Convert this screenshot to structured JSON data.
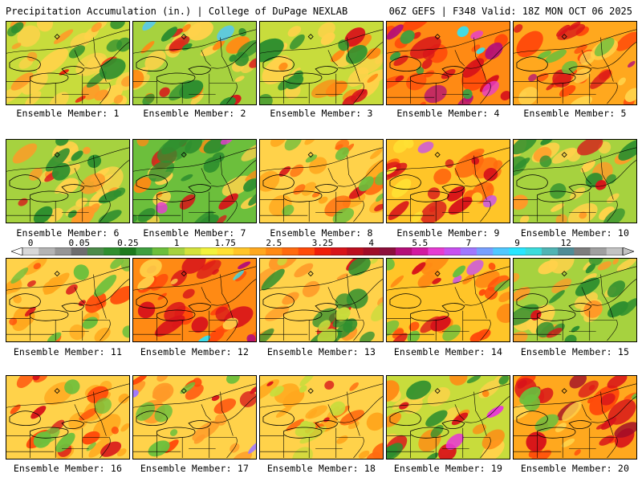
{
  "header": {
    "title_left": "Precipitation Accumulation (in.) | College of DuPage NEXLAB",
    "title_right": "06Z GEFS | F348 Valid: 18Z MON OCT 06 2025"
  },
  "colorbar": {
    "labels": [
      "0",
      "0.05",
      "0.25",
      "1",
      "1.75",
      "2.5",
      "3.25",
      "4",
      "5.5",
      "7",
      "9",
      "12"
    ],
    "label_segments": [
      0,
      3,
      6,
      9,
      12,
      15,
      18,
      21,
      24,
      27,
      30,
      33
    ],
    "colors": [
      "#d8d8d8",
      "#b4b4b4",
      "#969696",
      "#6e6e6e",
      "#4d8b4a",
      "#2f8f2f",
      "#1d7a1d",
      "#3f9f3f",
      "#6cbf3c",
      "#a6d23f",
      "#d4e23c",
      "#f2f23c",
      "#ffe033",
      "#ffc528",
      "#ffa81e",
      "#ff8a14",
      "#ff6a0f",
      "#ff4a0a",
      "#f01e0a",
      "#d8141a",
      "#bc0f1f",
      "#a00c28",
      "#8c0f3c",
      "#b40f78",
      "#d21aa0",
      "#e63cd2",
      "#c850f0",
      "#a078ff",
      "#78a0ff",
      "#50c8ff",
      "#28e6ff",
      "#3cdcdc",
      "#50b4b4",
      "#508c96",
      "#7d7d7d",
      "#a0a0a0",
      "#c3c3c3"
    ]
  },
  "members": [
    {
      "caption": "Ensemble Member: 1",
      "base": "#c8dc3c",
      "blobs": [
        [
          "#ffd24a",
          0.45
        ],
        [
          "#ff9a28",
          0.25
        ],
        [
          "#f01e0a",
          0.08
        ],
        [
          "#2f8f2f",
          0.2
        ]
      ]
    },
    {
      "caption": "Ensemble Member: 2",
      "base": "#a6d23f",
      "blobs": [
        [
          "#ffd24a",
          0.3
        ],
        [
          "#ff8a14",
          0.2
        ],
        [
          "#d8141a",
          0.15
        ],
        [
          "#2f8f2f",
          0.25
        ],
        [
          "#50c8ff",
          0.02
        ]
      ]
    },
    {
      "caption": "Ensemble Member: 3",
      "base": "#c8dc3c",
      "blobs": [
        [
          "#ffd24a",
          0.4
        ],
        [
          "#ff8a14",
          0.2
        ],
        [
          "#d8141a",
          0.1
        ],
        [
          "#2f8f2f",
          0.2
        ]
      ]
    },
    {
      "caption": "Ensemble Member: 4",
      "base": "#ff8a14",
      "blobs": [
        [
          "#ff4a0a",
          0.3
        ],
        [
          "#d8141a",
          0.25
        ],
        [
          "#b40f78",
          0.12
        ],
        [
          "#e63cd2",
          0.06
        ],
        [
          "#28e6ff",
          0.02
        ],
        [
          "#3f9f3f",
          0.1
        ]
      ]
    },
    {
      "caption": "Ensemble Member: 5",
      "base": "#ffa81e",
      "blobs": [
        [
          "#ff4a0a",
          0.3
        ],
        [
          "#d8141a",
          0.2
        ],
        [
          "#ffd24a",
          0.2
        ],
        [
          "#b40f78",
          0.04
        ],
        [
          "#6cbf3c",
          0.1
        ]
      ]
    },
    {
      "caption": "Ensemble Member: 6",
      "base": "#a6d23f",
      "blobs": [
        [
          "#ffd24a",
          0.35
        ],
        [
          "#ff9a28",
          0.2
        ],
        [
          "#d8141a",
          0.05
        ],
        [
          "#2f8f2f",
          0.25
        ]
      ]
    },
    {
      "caption": "Ensemble Member: 7",
      "base": "#6cbf3c",
      "blobs": [
        [
          "#ffd24a",
          0.2
        ],
        [
          "#ff8a14",
          0.15
        ],
        [
          "#d8141a",
          0.12
        ],
        [
          "#2f8f2f",
          0.35
        ],
        [
          "#e63cd2",
          0.03
        ]
      ]
    },
    {
      "caption": "Ensemble Member: 8",
      "base": "#ffd24a",
      "blobs": [
        [
          "#ffa81e",
          0.3
        ],
        [
          "#ff6a0f",
          0.2
        ],
        [
          "#d8141a",
          0.08
        ],
        [
          "#6cbf3c",
          0.2
        ]
      ]
    },
    {
      "caption": "Ensemble Member: 9",
      "base": "#ffc528",
      "blobs": [
        [
          "#ff6a0f",
          0.3
        ],
        [
          "#d8141a",
          0.25
        ],
        [
          "#ffe033",
          0.15
        ],
        [
          "#c850f0",
          0.03
        ]
      ]
    },
    {
      "caption": "Ensemble Member: 10",
      "base": "#a6d23f",
      "blobs": [
        [
          "#ffd24a",
          0.35
        ],
        [
          "#ff9a28",
          0.15
        ],
        [
          "#2f8f2f",
          0.25
        ],
        [
          "#d8141a",
          0.03
        ]
      ]
    },
    {
      "caption": "Ensemble Member: 11",
      "base": "#ffd24a",
      "blobs": [
        [
          "#ffa81e",
          0.3
        ],
        [
          "#ff4a0a",
          0.15
        ],
        [
          "#d8141a",
          0.1
        ],
        [
          "#6cbf3c",
          0.2
        ]
      ]
    },
    {
      "caption": "Ensemble Member: 12",
      "base": "#ff8a14",
      "blobs": [
        [
          "#ff4a0a",
          0.3
        ],
        [
          "#d8141a",
          0.3
        ],
        [
          "#b40f78",
          0.05
        ],
        [
          "#ffd24a",
          0.1
        ],
        [
          "#28e6ff",
          0.02
        ]
      ]
    },
    {
      "caption": "Ensemble Member: 13",
      "base": "#ffd24a",
      "blobs": [
        [
          "#ff9a28",
          0.25
        ],
        [
          "#d8141a",
          0.12
        ],
        [
          "#2f8f2f",
          0.3
        ],
        [
          "#c8dc3c",
          0.15
        ]
      ]
    },
    {
      "caption": "Ensemble Member: 14",
      "base": "#ffc528",
      "blobs": [
        [
          "#ff8a14",
          0.3
        ],
        [
          "#ff4a0a",
          0.2
        ],
        [
          "#d8141a",
          0.12
        ],
        [
          "#c850f0",
          0.03
        ],
        [
          "#6cbf3c",
          0.15
        ]
      ]
    },
    {
      "caption": "Ensemble Member: 15",
      "base": "#a6d23f",
      "blobs": [
        [
          "#ffd24a",
          0.3
        ],
        [
          "#ff9a28",
          0.2
        ],
        [
          "#2f8f2f",
          0.3
        ],
        [
          "#d8141a",
          0.05
        ]
      ]
    },
    {
      "caption": "Ensemble Member: 16",
      "base": "#ffd24a",
      "blobs": [
        [
          "#ffa81e",
          0.3
        ],
        [
          "#ff4a0a",
          0.2
        ],
        [
          "#d8141a",
          0.12
        ],
        [
          "#6cbf3c",
          0.15
        ]
      ]
    },
    {
      "caption": "Ensemble Member: 17",
      "base": "#ffd24a",
      "blobs": [
        [
          "#ff9a28",
          0.3
        ],
        [
          "#ff4a0a",
          0.15
        ],
        [
          "#d8141a",
          0.08
        ],
        [
          "#a078ff",
          0.03
        ],
        [
          "#6cbf3c",
          0.15
        ]
      ]
    },
    {
      "caption": "Ensemble Member: 18",
      "base": "#ffd24a",
      "blobs": [
        [
          "#ffa81e",
          0.3
        ],
        [
          "#ff6a0f",
          0.2
        ],
        [
          "#d8141a",
          0.08
        ],
        [
          "#c8dc3c",
          0.2
        ]
      ]
    },
    {
      "caption": "Ensemble Member: 19",
      "base": "#c8dc3c",
      "blobs": [
        [
          "#ffd24a",
          0.3
        ],
        [
          "#ff8a14",
          0.2
        ],
        [
          "#d8141a",
          0.1
        ],
        [
          "#2f8f2f",
          0.2
        ],
        [
          "#e63cd2",
          0.02
        ]
      ]
    },
    {
      "caption": "Ensemble Member: 20",
      "base": "#ffa81e",
      "blobs": [
        [
          "#ff4a0a",
          0.3
        ],
        [
          "#d8141a",
          0.3
        ],
        [
          "#a00c28",
          0.1
        ],
        [
          "#ffd24a",
          0.1
        ],
        [
          "#6cbf3c",
          0.1
        ]
      ]
    }
  ]
}
